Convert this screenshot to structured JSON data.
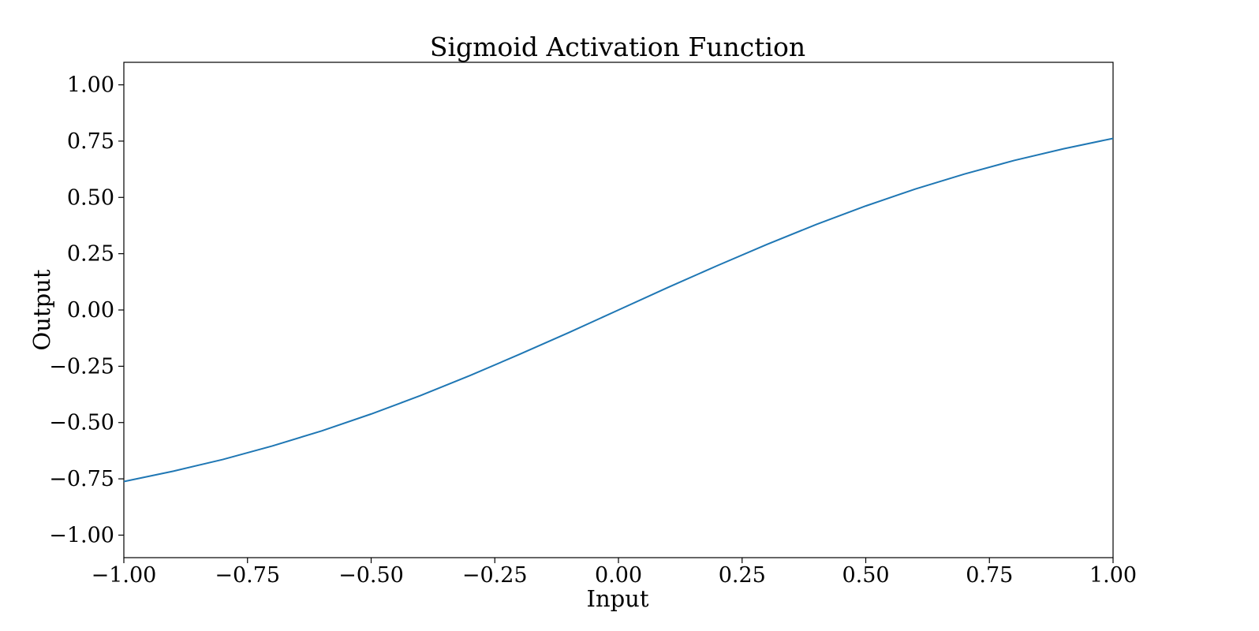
{
  "chart_data": {
    "type": "line",
    "title": "Sigmoid Activation Function",
    "xlabel": "Input",
    "ylabel": "Output",
    "xlim": [
      -1.0,
      1.0
    ],
    "ylim": [
      -1.1,
      1.1
    ],
    "grid": false,
    "legend": "none",
    "xticks": [
      -1.0,
      -0.75,
      -0.5,
      -0.25,
      0.0,
      0.25,
      0.5,
      0.75,
      1.0
    ],
    "xtick_labels": [
      "−1.00",
      "−0.75",
      "−0.50",
      "−0.25",
      "0.00",
      "0.25",
      "0.50",
      "0.75",
      "1.00"
    ],
    "yticks": [
      -1.0,
      -0.75,
      -0.5,
      -0.25,
      0.0,
      0.25,
      0.5,
      0.75,
      1.0
    ],
    "ytick_labels": [
      "−1.00",
      "−0.75",
      "−0.50",
      "−0.25",
      "0.00",
      "0.25",
      "0.50",
      "0.75",
      "1.00"
    ],
    "series": [
      {
        "color": "#1f77b4",
        "x": [
          -1.0,
          -0.9,
          -0.8,
          -0.7,
          -0.6,
          -0.5,
          -0.4,
          -0.3,
          -0.2,
          -0.1,
          0.0,
          0.1,
          0.2,
          0.3,
          0.4,
          0.5,
          0.6,
          0.7,
          0.8,
          0.9,
          1.0
        ],
        "y": [
          -0.762,
          -0.716,
          -0.664,
          -0.604,
          -0.537,
          -0.462,
          -0.38,
          -0.291,
          -0.197,
          -0.1,
          0.0,
          0.1,
          0.197,
          0.291,
          0.38,
          0.462,
          0.537,
          0.604,
          0.664,
          0.716,
          0.762
        ]
      }
    ]
  }
}
